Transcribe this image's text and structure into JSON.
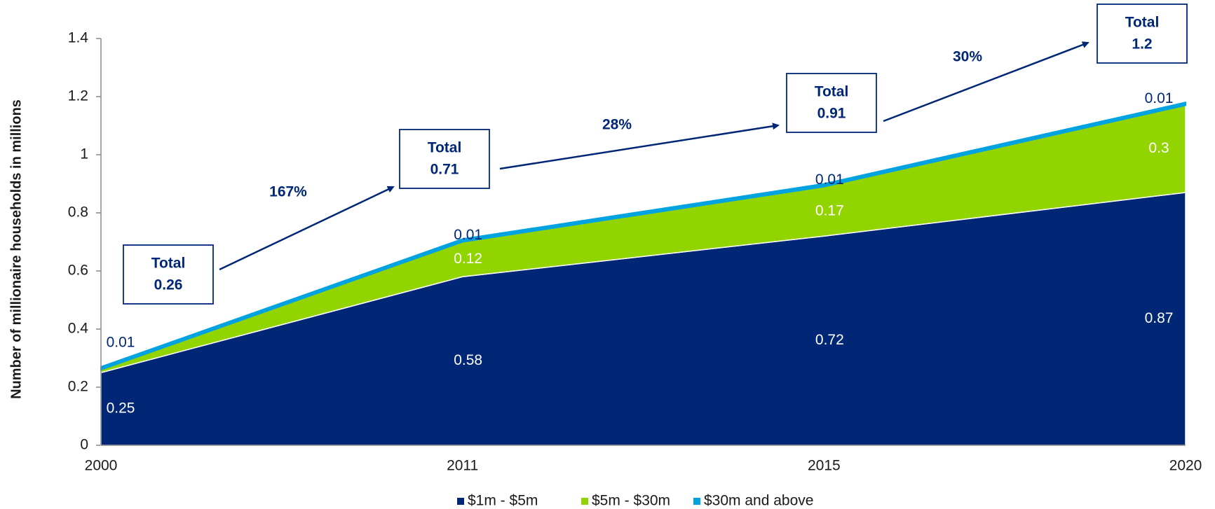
{
  "chart_data": {
    "type": "stacked_area",
    "y_label": "Number of millionaire households in millions",
    "categories": [
      "2000",
      "2011",
      "2015",
      "2020"
    ],
    "series": [
      {
        "name": "$1m - $5m",
        "color": "#002776",
        "values": [
          0.25,
          0.58,
          0.72,
          0.87
        ]
      },
      {
        "name": "$5m - $30m",
        "color": "#92d400",
        "values": [
          0.01,
          0.12,
          0.17,
          0.3
        ]
      },
      {
        "name": "$30m and above",
        "color": "#00a3e0",
        "values": [
          0.01,
          0.01,
          0.01,
          0.01
        ]
      }
    ],
    "ylim": [
      0,
      1.4
    ],
    "yticks": [
      0,
      0.2,
      0.4,
      0.6,
      0.8,
      1,
      1.2,
      1.4
    ],
    "total_label": "Total",
    "totals": [
      0.26,
      0.71,
      0.91,
      1.2
    ],
    "growth_labels": [
      "167%",
      "28%",
      "30%"
    ],
    "legend": "bottom"
  }
}
